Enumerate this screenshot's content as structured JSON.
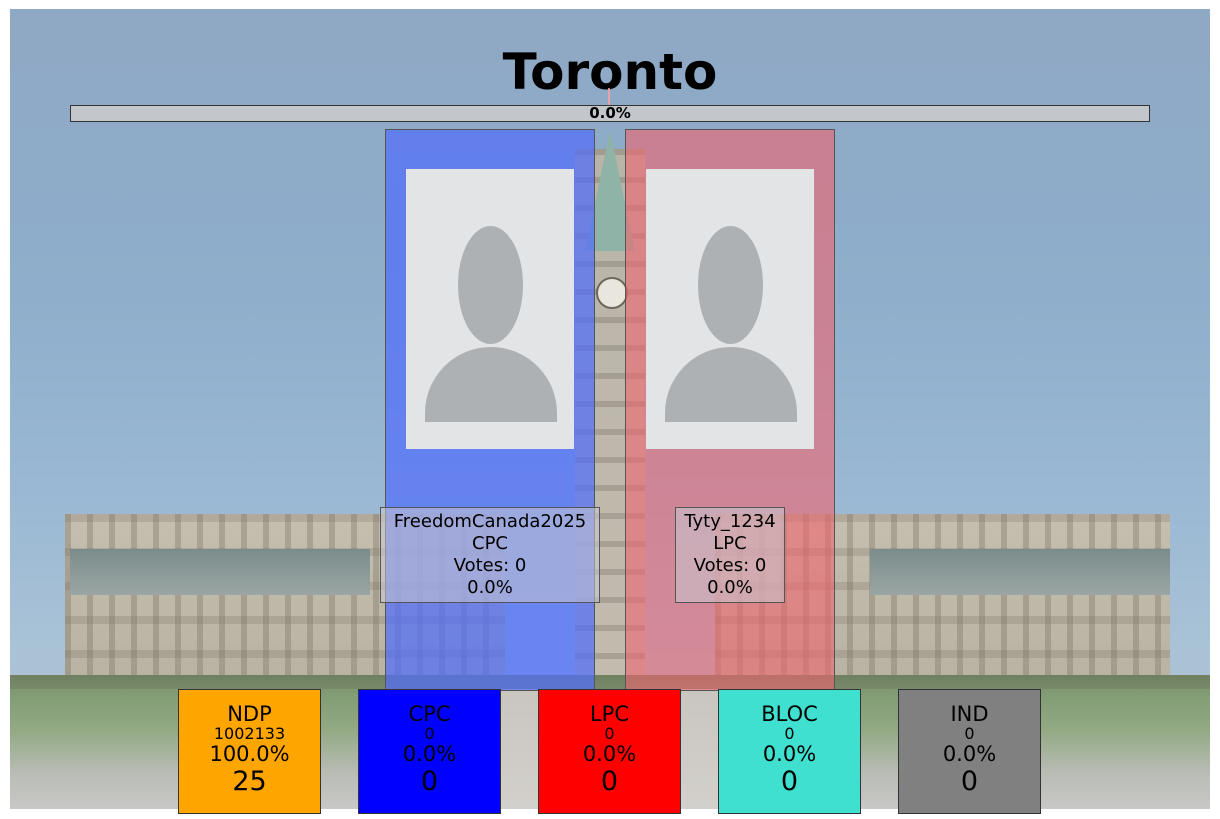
{
  "riding": {
    "title": "Toronto"
  },
  "progress": {
    "label": "0.0%",
    "value": 0.0
  },
  "candidates": [
    {
      "name": "FreedomCanada2025",
      "party": "CPC",
      "votes": "Votes: 0",
      "percent": "0.0%",
      "color": "#506ef8"
    },
    {
      "name": "Tyty_1234",
      "party": "LPC",
      "votes": "Votes: 0",
      "percent": "0.0%",
      "color": "#f0646e"
    }
  ],
  "parties": [
    {
      "name": "NDP",
      "votes": "1002133",
      "percent": "100.0%",
      "seats": "25",
      "color": "#ffa500"
    },
    {
      "name": "CPC",
      "votes": "0",
      "percent": "0.0%",
      "seats": "0",
      "color": "#0000ff"
    },
    {
      "name": "LPC",
      "votes": "0",
      "percent": "0.0%",
      "seats": "0",
      "color": "#ff0000"
    },
    {
      "name": "BLOC",
      "votes": "0",
      "percent": "0.0%",
      "seats": "0",
      "color": "#40e0d0"
    },
    {
      "name": "IND",
      "votes": "0",
      "percent": "0.0%",
      "seats": "0",
      "color": "#808080"
    }
  ],
  "icons": {
    "candidate_photo": "person-placeholder-icon",
    "background": "parliament-building-photo"
  }
}
